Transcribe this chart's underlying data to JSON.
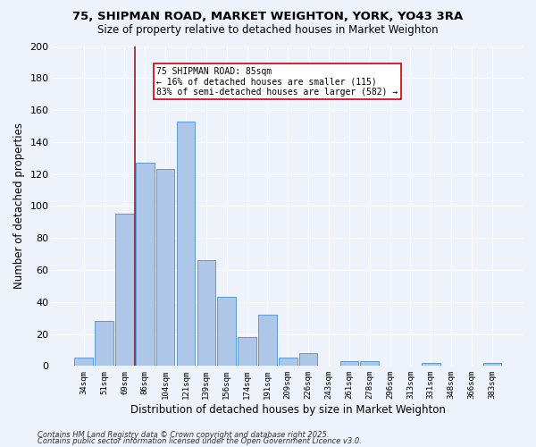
{
  "title1": "75, SHIPMAN ROAD, MARKET WEIGHTON, YORK, YO43 3RA",
  "title2": "Size of property relative to detached houses in Market Weighton",
  "xlabel": "Distribution of detached houses by size in Market Weighton",
  "ylabel": "Number of detached properties",
  "categories": [
    "34sqm",
    "51sqm",
    "69sqm",
    "86sqm",
    "104sqm",
    "121sqm",
    "139sqm",
    "156sqm",
    "174sqm",
    "191sqm",
    "209sqm",
    "226sqm",
    "243sqm",
    "261sqm",
    "278sqm",
    "296sqm",
    "313sqm",
    "331sqm",
    "348sqm",
    "366sqm",
    "383sqm"
  ],
  "values": [
    5,
    28,
    95,
    127,
    123,
    153,
    66,
    43,
    18,
    32,
    5,
    8,
    0,
    3,
    3,
    0,
    0,
    2,
    0,
    0,
    2
  ],
  "bar_color": "#aec6e8",
  "bar_edge_color": "#5b9bd5",
  "vline_x": 2.5,
  "vline_color": "#9b1b1b",
  "ylim": [
    0,
    200
  ],
  "yticks": [
    0,
    20,
    40,
    60,
    80,
    100,
    120,
    140,
    160,
    180,
    200
  ],
  "annotation_text": "75 SHIPMAN ROAD: 85sqm\n← 16% of detached houses are smaller (115)\n83% of semi-detached houses are larger (582) →",
  "annotation_box_color": "#ffffff",
  "annotation_box_edge": "#cc0000",
  "footnote1": "Contains HM Land Registry data © Crown copyright and database right 2025.",
  "footnote2": "Contains public sector information licensed under the Open Government Licence v3.0.",
  "bg_color": "#edf2fb",
  "grid_color": "#ffffff"
}
